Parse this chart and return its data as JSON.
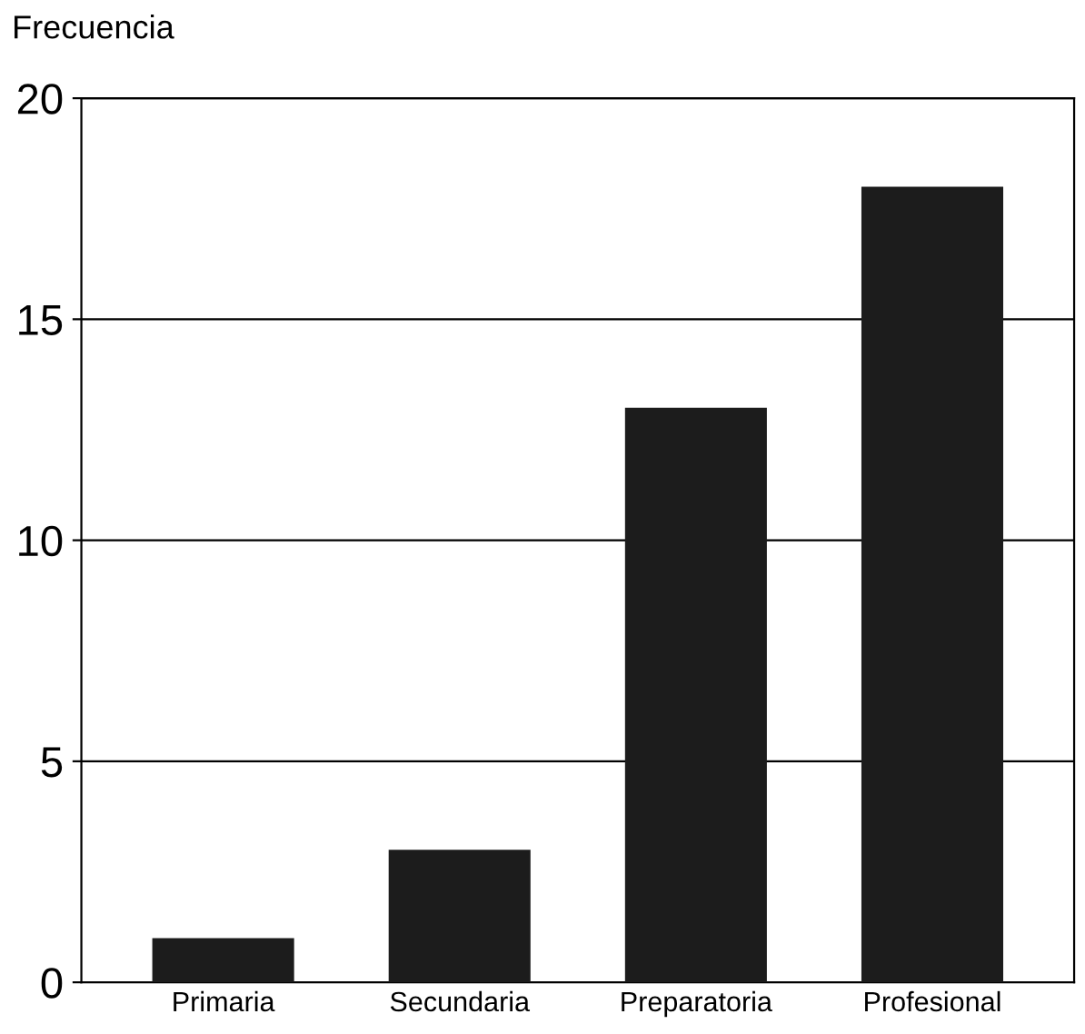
{
  "chart_data": {
    "type": "bar",
    "ylabel": "Frecuencia",
    "categories": [
      "Primaria",
      "Secundaria",
      "Preparatoria",
      "Profesional"
    ],
    "values": [
      1,
      3,
      13,
      18
    ],
    "color": "#1c1c1c",
    "ylim": [
      0,
      20
    ],
    "yticks": [
      0,
      5,
      10,
      15,
      20
    ],
    "grid": "y",
    "legend": false
  }
}
